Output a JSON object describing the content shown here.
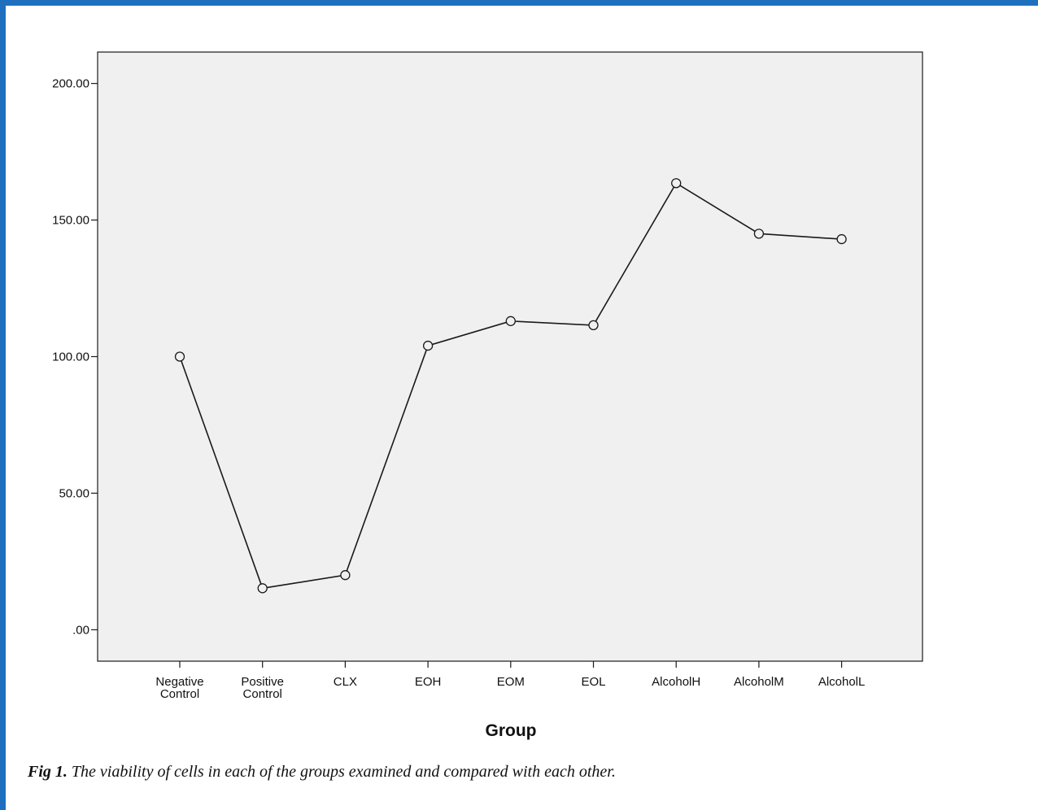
{
  "figure": {
    "label": "Fig 1.",
    "caption": "The viability of cells in each of the groups examined and compared with each other."
  },
  "colors": {
    "frame": "#1f6fbf",
    "plot_background": "#f0f0f0",
    "line": "#1a1a1a"
  },
  "chart_data": {
    "type": "line",
    "title": "",
    "xlabel": "Group",
    "ylabel": "",
    "categories": [
      "Negative Control",
      "Positive Control",
      "CLX",
      "EOH",
      "EOM",
      "EOL",
      "AlcoholH",
      "AlcoholM",
      "AlcoholL"
    ],
    "series": [
      {
        "values": [
          100.0,
          15.2,
          20.0,
          104.0,
          113.0,
          111.5,
          163.5,
          145.0,
          143.0
        ]
      }
    ],
    "ylim": [
      -11.5,
      211.5
    ],
    "yticks": [
      0,
      50,
      100,
      150,
      200
    ],
    "ytick_labels": [
      ".00",
      "50.00",
      "100.00",
      "150.00",
      "200.00"
    ],
    "marker": "open-circle",
    "grid": false,
    "legend": "none"
  }
}
